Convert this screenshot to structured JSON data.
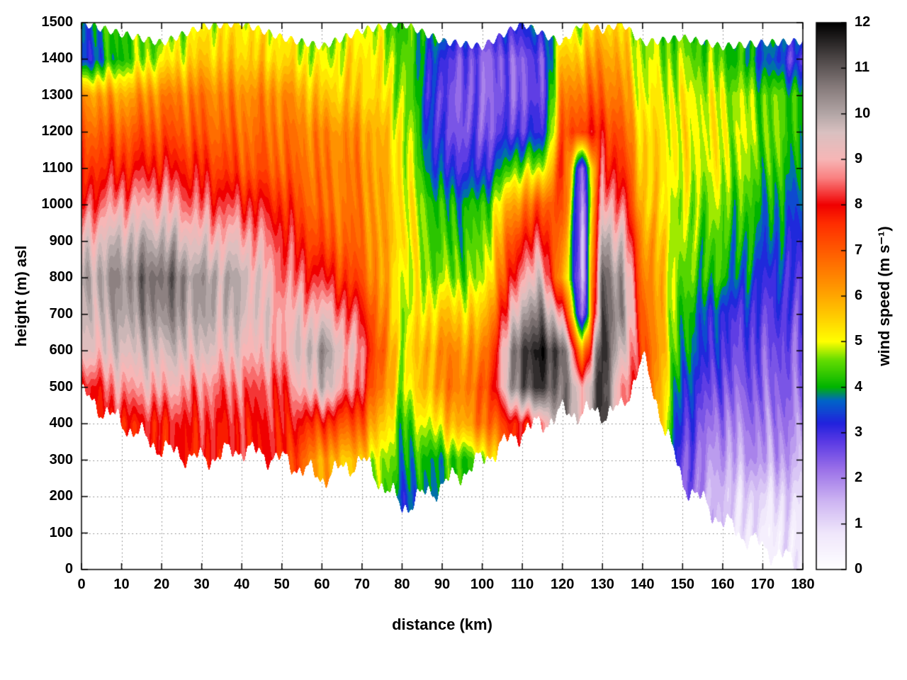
{
  "chart_data": {
    "type": "heatmap",
    "subtype": "filled-contour",
    "title": "",
    "xlabel": "distance (km)",
    "ylabel": "height (m) asl",
    "colorbar_label": "wind speed (m s⁻¹)",
    "xlim": [
      0,
      180
    ],
    "ylim": [
      0,
      1500
    ],
    "clim": [
      0,
      12
    ],
    "grid": "dotted",
    "contour_interval": 0.25,
    "x_ticks": [
      0,
      10,
      20,
      30,
      40,
      50,
      60,
      70,
      80,
      90,
      100,
      110,
      120,
      130,
      140,
      150,
      160,
      170,
      180
    ],
    "y_ticks": [
      0,
      100,
      200,
      300,
      400,
      500,
      600,
      700,
      800,
      900,
      1000,
      1100,
      1200,
      1300,
      1400,
      1500
    ],
    "colorbar_ticks": [
      0,
      1,
      2,
      3,
      4,
      5,
      6,
      7,
      8,
      9,
      10,
      11,
      12
    ],
    "x_km": [
      0,
      10,
      20,
      30,
      40,
      50,
      60,
      70,
      80,
      90,
      100,
      110,
      115,
      120,
      125,
      130,
      135,
      140,
      150,
      160,
      170,
      180
    ],
    "y_m": [
      0,
      100,
      200,
      300,
      400,
      500,
      600,
      700,
      800,
      900,
      1000,
      1100,
      1200,
      1300,
      1400,
      1500
    ],
    "terrain_height_m": [
      480,
      400,
      330,
      300,
      330,
      300,
      250,
      300,
      170,
      230,
      300,
      380,
      400,
      430,
      430,
      430,
      440,
      580,
      240,
      130,
      60,
      10
    ],
    "top_boundary_m": [
      1500,
      1470,
      1445,
      1490,
      1500,
      1460,
      1435,
      1480,
      1500,
      1450,
      1435,
      1500,
      1470,
      1445,
      1500,
      1480,
      1500,
      1445,
      1460,
      1435,
      1445,
      1450
    ],
    "wind_speed_grid": [
      [
        null,
        null,
        null,
        null,
        null,
        null,
        null,
        null,
        null,
        null,
        null,
        null,
        null,
        null,
        null,
        null,
        null,
        null,
        null,
        null,
        null,
        null
      ],
      [
        null,
        null,
        null,
        null,
        null,
        null,
        null,
        null,
        null,
        null,
        null,
        null,
        null,
        null,
        null,
        null,
        null,
        null,
        null,
        null,
        0.6,
        0.7
      ],
      [
        null,
        null,
        null,
        null,
        null,
        null,
        null,
        null,
        3.5,
        null,
        null,
        null,
        null,
        null,
        null,
        null,
        null,
        null,
        null,
        1.2,
        1.0,
        1.1
      ],
      [
        null,
        null,
        null,
        7.8,
        null,
        7.8,
        6.0,
        5.5,
        4.0,
        4.0,
        4.5,
        null,
        null,
        null,
        null,
        null,
        null,
        null,
        2.6,
        1.6,
        1.8,
        1.6
      ],
      [
        null,
        7.8,
        7.9,
        8.1,
        8.0,
        8.0,
        7.6,
        7.0,
        4.2,
        5.4,
        6.6,
        8.0,
        8.4,
        null,
        null,
        null,
        null,
        null,
        3.0,
        2.0,
        2.1,
        2.0
      ],
      [
        7.8,
        8.8,
        9.0,
        8.6,
        8.5,
        8.2,
        9.8,
        8.2,
        4.8,
        6.4,
        6.8,
        11.2,
        11.3,
        10.8,
        9.0,
        11.6,
        8.6,
        null,
        3.4,
        2.5,
        2.4,
        2.3
      ],
      [
        9.2,
        9.6,
        9.7,
        9.5,
        9.2,
        8.9,
        10.3,
        8.6,
        5.0,
        6.4,
        6.2,
        11.5,
        11.6,
        11.2,
        6.0,
        11.7,
        9.6,
        7.6,
        3.9,
        2.9,
        2.6,
        2.5
      ],
      [
        9.6,
        10.1,
        10.5,
        10.0,
        9.7,
        9.0,
        9.2,
        8.0,
        4.8,
        5.6,
        5.4,
        10.2,
        10.6,
        8.8,
        1.8,
        11.2,
        10.4,
        7.2,
        4.1,
        3.1,
        2.9,
        2.8
      ],
      [
        9.9,
        10.4,
        10.9,
        10.1,
        9.9,
        8.6,
        8.1,
        7.1,
        5.0,
        4.6,
        4.6,
        9.0,
        9.4,
        6.0,
        1.4,
        11.0,
        10.2,
        6.8,
        4.4,
        4.1,
        3.2,
        3.0
      ],
      [
        9.2,
        9.8,
        10.0,
        9.3,
        9.1,
        8.3,
        7.2,
        6.7,
        5.4,
        4.2,
        4.4,
        8.0,
        8.2,
        6.6,
        1.4,
        10.2,
        9.4,
        6.4,
        4.6,
        4.3,
        3.7,
        3.2
      ],
      [
        8.2,
        8.8,
        9.0,
        8.4,
        8.2,
        7.7,
        6.7,
        6.6,
        5.3,
        4.0,
        4.1,
        6.6,
        7.0,
        7.4,
        1.6,
        9.2,
        8.4,
        5.8,
        4.7,
        4.6,
        4.0,
        3.5
      ],
      [
        7.6,
        7.8,
        8.0,
        7.7,
        7.2,
        7.0,
        6.6,
        6.5,
        5.2,
        3.2,
        3.0,
        4.8,
        4.6,
        7.8,
        2.2,
        8.4,
        7.6,
        5.6,
        5.0,
        4.9,
        4.4,
        3.9
      ],
      [
        7.0,
        7.0,
        7.2,
        7.0,
        6.8,
        6.7,
        6.4,
        6.3,
        5.1,
        2.7,
        2.5,
        3.0,
        3.0,
        7.0,
        7.6,
        7.8,
        7.0,
        5.4,
        5.1,
        5.0,
        4.6,
        4.2
      ],
      [
        6.3,
        6.0,
        6.5,
        6.6,
        6.4,
        6.4,
        5.6,
        5.6,
        4.8,
        2.6,
        2.4,
        2.5,
        2.6,
        6.4,
        6.8,
        7.0,
        6.4,
        5.0,
        5.0,
        4.9,
        4.5,
        4.3
      ],
      [
        3.2,
        4.2,
        5.0,
        5.6,
        5.6,
        5.4,
        4.8,
        5.4,
        4.6,
        3.0,
        2.4,
        2.5,
        2.6,
        5.6,
        5.8,
        6.4,
        5.8,
        4.8,
        4.6,
        4.4,
        3.6,
        2.8
      ],
      [
        3.6,
        4.4,
        4.2,
        5.0,
        5.2,
        5.0,
        4.4,
        5.0,
        4.2,
        4.0,
        3.2,
        3.4,
        3.6,
        4.6,
        4.8,
        5.6,
        5.2,
        4.6,
        4.2,
        4.1,
        4.0,
        3.9
      ]
    ],
    "palette_stops": [
      [
        0.0,
        "#ffffff"
      ],
      [
        0.8,
        "#efe6fb"
      ],
      [
        1.5,
        "#cdb4f2"
      ],
      [
        2.2,
        "#9a70e8"
      ],
      [
        2.8,
        "#5a3ae4"
      ],
      [
        3.2,
        "#2222dd"
      ],
      [
        3.7,
        "#0064c8"
      ],
      [
        4.0,
        "#00b400"
      ],
      [
        4.6,
        "#66dd00"
      ],
      [
        5.0,
        "#ffff00"
      ],
      [
        5.6,
        "#ffc800"
      ],
      [
        6.2,
        "#ff9600"
      ],
      [
        7.0,
        "#ff5a00"
      ],
      [
        7.6,
        "#ff2d00"
      ],
      [
        8.0,
        "#f00000"
      ],
      [
        8.6,
        "#fa8282"
      ],
      [
        9.0,
        "#f7b6b6"
      ],
      [
        9.6,
        "#d9c0c0"
      ],
      [
        10.0,
        "#b3a6a6"
      ],
      [
        10.6,
        "#857a7a"
      ],
      [
        11.2,
        "#4e4848"
      ],
      [
        12.0,
        "#000000"
      ]
    ]
  }
}
